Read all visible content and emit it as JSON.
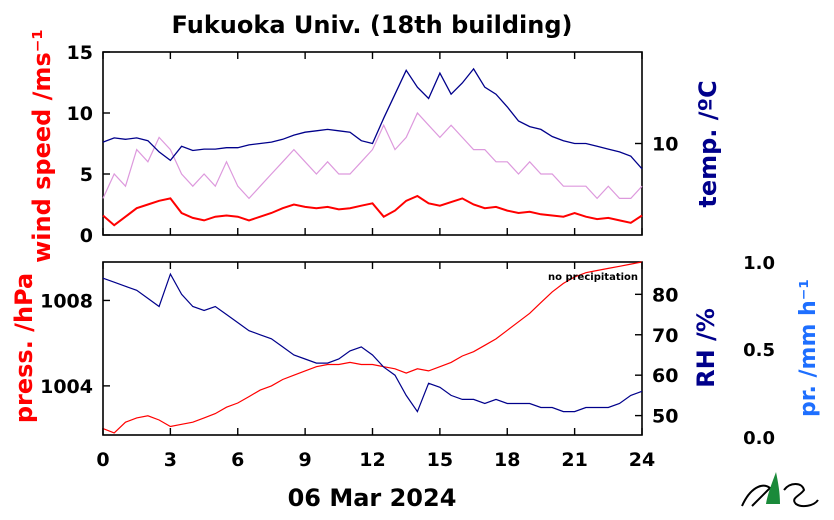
{
  "title": "Fukuoka Univ. (18th building)",
  "date_label": "06 Mar 2024",
  "no_precip_note": "no precipitation",
  "colors": {
    "wind_mean": "#ff0000",
    "wind_gust": "#dd99dd",
    "temp": "#00008b",
    "pressure": "#ff0000",
    "rh": "#00008b",
    "precip": "#1e6fff",
    "axis": "#000000"
  },
  "chart_data": [
    {
      "type": "line",
      "panel": "top",
      "ylabel": "wind speed /ms⁻¹",
      "ylabel_right": "temp. /ºC",
      "ylim": [
        0,
        15
      ],
      "yticks": [
        0,
        5,
        10,
        15
      ],
      "ytick_labels": [
        "0",
        "5",
        "10",
        "15"
      ],
      "ylim_right": [
        3.5,
        16.5
      ],
      "yticks_right": [
        10
      ],
      "ytick_labels_right": [
        "10"
      ],
      "xlim": [
        0,
        24
      ],
      "series": [
        {
          "axis": "left",
          "style": "gust",
          "x": [
            0,
            0.5,
            1,
            1.5,
            2,
            2.5,
            3,
            3.5,
            4,
            4.5,
            5,
            5.5,
            6,
            6.5,
            7,
            7.5,
            8,
            8.5,
            9,
            9.5,
            10,
            10.5,
            11,
            11.5,
            12,
            12.5,
            13,
            13.5,
            14,
            14.5,
            15,
            15.5,
            16,
            16.5,
            17,
            17.5,
            18,
            18.5,
            19,
            19.5,
            20,
            20.5,
            21,
            21.5,
            22,
            22.5,
            23,
            23.5,
            24
          ],
          "values": [
            3,
            5,
            4,
            7,
            6,
            8,
            7,
            5,
            4,
            5,
            4,
            6,
            4,
            3,
            4,
            5,
            6,
            7,
            6,
            5,
            6,
            5,
            5,
            6,
            7,
            9,
            7,
            8,
            10,
            9,
            8,
            9,
            8,
            7,
            7,
            6,
            6,
            5,
            6,
            5,
            5,
            4,
            4,
            4,
            3,
            4,
            3,
            3,
            4
          ]
        },
        {
          "axis": "left",
          "style": "mean",
          "x": [
            0,
            0.5,
            1,
            1.5,
            2,
            2.5,
            3,
            3.5,
            4,
            4.5,
            5,
            5.5,
            6,
            6.5,
            7,
            7.5,
            8,
            8.5,
            9,
            9.5,
            10,
            10.5,
            11,
            11.5,
            12,
            12.5,
            13,
            13.5,
            14,
            14.5,
            15,
            15.5,
            16,
            16.5,
            17,
            17.5,
            18,
            18.5,
            19,
            19.5,
            20,
            20.5,
            21,
            21.5,
            22,
            22.5,
            23,
            23.5,
            24
          ],
          "values": [
            1.6,
            0.8,
            1.5,
            2.2,
            2.5,
            2.8,
            3.0,
            1.8,
            1.4,
            1.2,
            1.5,
            1.6,
            1.5,
            1.2,
            1.5,
            1.8,
            2.2,
            2.5,
            2.3,
            2.2,
            2.3,
            2.1,
            2.2,
            2.4,
            2.6,
            1.5,
            2.0,
            2.8,
            3.2,
            2.6,
            2.4,
            2.7,
            3.0,
            2.5,
            2.2,
            2.3,
            2.0,
            1.8,
            1.9,
            1.7,
            1.6,
            1.5,
            1.8,
            1.5,
            1.3,
            1.4,
            1.2,
            1.0,
            1.6
          ]
        },
        {
          "axis": "right",
          "style": "temp",
          "x": [
            0,
            0.5,
            1,
            1.5,
            2,
            2.5,
            3,
            3.5,
            4,
            4.5,
            5,
            5.5,
            6,
            6.5,
            7,
            7.5,
            8,
            8.5,
            9,
            9.5,
            10,
            10.5,
            11,
            11.5,
            12,
            12.5,
            13,
            13.5,
            14,
            14.5,
            15,
            15.5,
            16,
            16.5,
            17,
            17.5,
            18,
            18.5,
            19,
            19.5,
            20,
            20.5,
            21,
            21.5,
            22,
            22.5,
            23,
            23.5,
            24
          ],
          "values": [
            10.1,
            10.4,
            10.3,
            10.4,
            10.2,
            9.4,
            8.8,
            9.8,
            9.5,
            9.6,
            9.6,
            9.7,
            9.7,
            9.9,
            10.0,
            10.1,
            10.3,
            10.6,
            10.8,
            10.9,
            11.0,
            10.9,
            10.8,
            10.2,
            10.0,
            11.8,
            13.5,
            15.2,
            14.0,
            13.2,
            15.0,
            13.5,
            14.3,
            15.3,
            14.0,
            13.5,
            12.6,
            11.6,
            11.2,
            11.0,
            10.5,
            10.2,
            10.0,
            10.0,
            9.8,
            9.6,
            9.4,
            9.1,
            8.2
          ]
        }
      ]
    },
    {
      "type": "line",
      "panel": "bottom",
      "ylabel": "press. /hPa",
      "ylabel_right": "RH /%",
      "ylabel_far_right": "pr. /mm h⁻¹",
      "ylim": [
        1001.7,
        1009.8
      ],
      "yticks": [
        1004,
        1008
      ],
      "ytick_labels": [
        "1004",
        "1008"
      ],
      "ylim_right": [
        45.2,
        88.0
      ],
      "yticks_right": [
        50,
        60,
        70,
        80
      ],
      "ytick_labels_right": [
        "50",
        "60",
        "70",
        "80"
      ],
      "precip_axis_ticks": [
        "0.0",
        "0.5",
        "1.0"
      ],
      "xlim": [
        0,
        24
      ],
      "xticks": [
        0,
        3,
        6,
        9,
        12,
        15,
        18,
        21,
        24
      ],
      "xtick_labels": [
        "0",
        "3",
        "6",
        "9",
        "12",
        "15",
        "18",
        "21",
        "24"
      ],
      "series": [
        {
          "axis": "left",
          "style": "pressure",
          "x": [
            0,
            0.5,
            1,
            1.5,
            2,
            2.5,
            3,
            3.5,
            4,
            4.5,
            5,
            5.5,
            6,
            6.5,
            7,
            7.5,
            8,
            8.5,
            9,
            9.5,
            10,
            10.5,
            11,
            11.5,
            12,
            12.5,
            13,
            13.5,
            14,
            14.5,
            15,
            15.5,
            16,
            16.5,
            17,
            17.5,
            18,
            18.5,
            19,
            19.5,
            20,
            20.5,
            21,
            21.5,
            22,
            22.5,
            23,
            23.5,
            24
          ],
          "values": [
            1002.0,
            1001.8,
            1002.3,
            1002.5,
            1002.6,
            1002.4,
            1002.1,
            1002.2,
            1002.3,
            1002.5,
            1002.7,
            1003.0,
            1003.2,
            1003.5,
            1003.8,
            1004.0,
            1004.3,
            1004.5,
            1004.7,
            1004.9,
            1005.0,
            1005.0,
            1005.1,
            1005.0,
            1005.0,
            1004.9,
            1004.8,
            1004.6,
            1004.8,
            1004.7,
            1004.9,
            1005.1,
            1005.4,
            1005.6,
            1005.9,
            1006.2,
            1006.6,
            1007.0,
            1007.4,
            1007.9,
            1008.4,
            1008.8,
            1009.1,
            1009.3,
            1009.4,
            1009.5,
            1009.6,
            1009.7,
            1009.8
          ]
        },
        {
          "axis": "right",
          "style": "rh",
          "x": [
            0,
            0.5,
            1,
            1.5,
            2,
            2.5,
            3,
            3.5,
            4,
            4.5,
            5,
            5.5,
            6,
            6.5,
            7,
            7.5,
            8,
            8.5,
            9,
            9.5,
            10,
            10.5,
            11,
            11.5,
            12,
            12.5,
            13,
            13.5,
            14,
            14.5,
            15,
            15.5,
            16,
            16.5,
            17,
            17.5,
            18,
            18.5,
            19,
            19.5,
            20,
            20.5,
            21,
            21.5,
            22,
            22.5,
            23,
            23.5,
            24
          ],
          "values": [
            84,
            83,
            82,
            81,
            79,
            77,
            85,
            80,
            77,
            76,
            77,
            75,
            73,
            71,
            70,
            69,
            67,
            65,
            64,
            63,
            63,
            64,
            66,
            67,
            65,
            62,
            60,
            55,
            51,
            58,
            57,
            55,
            54,
            54,
            53,
            54,
            53,
            53,
            53,
            52,
            52,
            51,
            51,
            52,
            52,
            52,
            53,
            55,
            56
          ]
        }
      ]
    }
  ]
}
